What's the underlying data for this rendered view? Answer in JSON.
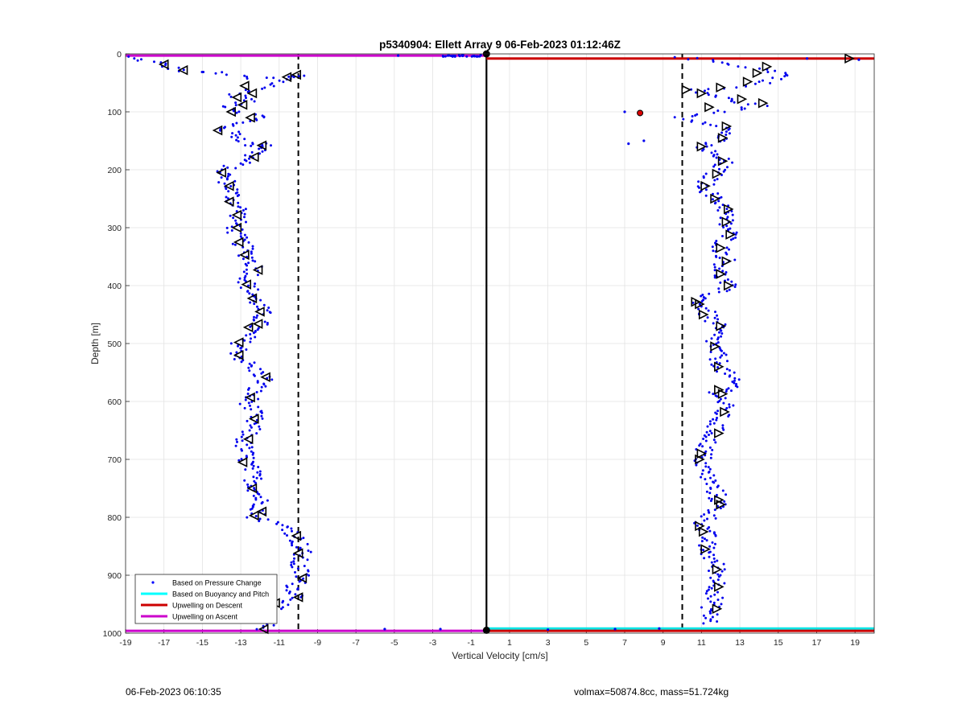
{
  "chart_data": {
    "type": "scatter",
    "title": "p5340904: Ellett Array 9 06-Feb-2023 01:12:46Z",
    "xlabel": "Vertical Velocity [cm/s]",
    "ylabel": "Depth [m]",
    "xlim": [
      -19,
      20
    ],
    "ylim": [
      0,
      1000
    ],
    "y_reversed": true,
    "grid": true,
    "xticks": [
      -19,
      -17,
      -15,
      -13,
      -11,
      -9,
      -7,
      -5,
      -3,
      -1,
      1,
      3,
      5,
      7,
      9,
      11,
      13,
      15,
      17,
      19
    ],
    "yticks": [
      0,
      100,
      200,
      300,
      400,
      500,
      600,
      700,
      800,
      900,
      1000
    ],
    "legend_position": "bottom-left",
    "legend": [
      {
        "label": "Based on Pressure Change",
        "color": "#0000ff",
        "style": "point"
      },
      {
        "label": "Based on Buoyancy and Pitch",
        "color": "#00ffff",
        "style": "line"
      },
      {
        "label": "Upwelling on Descent",
        "color": "#cc0000",
        "style": "line"
      },
      {
        "label": "Upwelling on Ascent",
        "color": "#cc00cc",
        "style": "line"
      }
    ],
    "reference_lines": {
      "dashed_x": [
        -10,
        10
      ],
      "solid_x": [
        -0.2
      ],
      "upwelling_ascent_depth": 3,
      "upwelling_descent_depth": 8,
      "bottom_lines_depth": [
        992,
        996
      ]
    },
    "ascent_profile": [
      [
        -19,
        5
      ],
      [
        -17.4,
        15
      ],
      [
        -16,
        30
      ],
      [
        -14.3,
        32
      ],
      [
        -12.6,
        42
      ],
      [
        -10.7,
        40
      ],
      [
        -9.9,
        38
      ],
      [
        -12,
        60
      ],
      [
        -13.3,
        70
      ],
      [
        -12.6,
        80
      ],
      [
        -13.5,
        90
      ],
      [
        -13.0,
        100
      ],
      [
        -11.6,
        110
      ],
      [
        -13.4,
        120
      ],
      [
        -13.8,
        130
      ],
      [
        -13.0,
        145
      ],
      [
        -12.4,
        160
      ],
      [
        -11.4,
        155
      ],
      [
        -12.4,
        175
      ],
      [
        -12.8,
        185
      ],
      [
        -13.9,
        200
      ],
      [
        -13.8,
        215
      ],
      [
        -13.5,
        230
      ],
      [
        -13.4,
        250
      ],
      [
        -13.0,
        270
      ],
      [
        -13.2,
        290
      ],
      [
        -13.3,
        310
      ],
      [
        -12.9,
        330
      ],
      [
        -12.6,
        350
      ],
      [
        -12.2,
        370
      ],
      [
        -12.7,
        395
      ],
      [
        -12.3,
        420
      ],
      [
        -11.9,
        445
      ],
      [
        -12.0,
        465
      ],
      [
        -12.5,
        480
      ],
      [
        -13.0,
        500
      ],
      [
        -13.1,
        520
      ],
      [
        -12.5,
        540
      ],
      [
        -11.7,
        560
      ],
      [
        -12.3,
        580
      ],
      [
        -12.6,
        600
      ],
      [
        -12.3,
        625
      ],
      [
        -12.5,
        650
      ],
      [
        -12.9,
        670
      ],
      [
        -12.7,
        700
      ],
      [
        -12.4,
        725
      ],
      [
        -12.2,
        750
      ],
      [
        -11.9,
        780
      ],
      [
        -12.2,
        800
      ],
      [
        -10.4,
        820
      ],
      [
        -10.0,
        840
      ],
      [
        -9.8,
        860
      ],
      [
        -10.1,
        880
      ],
      [
        -9.8,
        900
      ],
      [
        -10.2,
        920
      ],
      [
        -10.0,
        940
      ],
      [
        -11.3,
        955
      ],
      [
        -11.8,
        975
      ],
      [
        -11.7,
        995
      ]
    ],
    "descent_profile": [
      [
        9.9,
        5
      ],
      [
        12,
        15
      ],
      [
        14,
        25
      ],
      [
        15.5,
        35
      ],
      [
        14.5,
        48
      ],
      [
        12.8,
        58
      ],
      [
        10.5,
        62
      ],
      [
        11.5,
        70
      ],
      [
        12.5,
        80
      ],
      [
        14.0,
        90
      ],
      [
        11.8,
        100
      ],
      [
        10.0,
        110
      ],
      [
        12.2,
        125
      ],
      [
        12.3,
        140
      ],
      [
        11.0,
        160
      ],
      [
        11.6,
        175
      ],
      [
        12.2,
        185
      ],
      [
        11.7,
        205
      ],
      [
        11.2,
        225
      ],
      [
        11.5,
        245
      ],
      [
        12.3,
        265
      ],
      [
        12.2,
        290
      ],
      [
        12.5,
        310
      ],
      [
        12.0,
        335
      ],
      [
        12.3,
        355
      ],
      [
        11.9,
        380
      ],
      [
        12.4,
        400
      ],
      [
        10.9,
        425
      ],
      [
        11.3,
        450
      ],
      [
        11.8,
        470
      ],
      [
        11.6,
        500
      ],
      [
        11.9,
        530
      ],
      [
        12.3,
        555
      ],
      [
        12.8,
        575
      ],
      [
        11.9,
        585
      ],
      [
        12.2,
        610
      ],
      [
        11.8,
        635
      ],
      [
        11.6,
        655
      ],
      [
        11.2,
        680
      ],
      [
        11.0,
        705
      ],
      [
        11.3,
        730
      ],
      [
        11.8,
        760
      ],
      [
        11.9,
        780
      ],
      [
        11.1,
        810
      ],
      [
        11.3,
        835
      ],
      [
        11.2,
        855
      ],
      [
        11.8,
        885
      ],
      [
        11.9,
        905
      ],
      [
        11.8,
        925
      ],
      [
        11.6,
        945
      ],
      [
        11.4,
        965
      ],
      [
        11.5,
        985
      ]
    ],
    "scatter_outliers": [
      [
        -4.8,
        3
      ],
      [
        -0.5,
        2
      ],
      [
        7.2,
        155
      ],
      [
        8.0,
        150
      ],
      [
        7.0,
        100
      ],
      [
        7.8,
        102
      ],
      [
        16.5,
        8
      ],
      [
        19.2,
        10
      ],
      [
        -5.5,
        993
      ],
      [
        -2.6,
        993
      ],
      [
        3.0,
        994
      ],
      [
        6.5,
        993
      ],
      [
        8.8,
        992
      ]
    ],
    "ascent_markers": [
      [
        -17.0,
        18
      ],
      [
        -16.0,
        28
      ],
      [
        -10.6,
        40
      ],
      [
        -10.1,
        36
      ],
      [
        -12.8,
        55
      ],
      [
        -12.4,
        68
      ],
      [
        -13.2,
        75
      ],
      [
        -12.9,
        88
      ],
      [
        -13.5,
        100
      ],
      [
        -12.5,
        110
      ],
      [
        -14.2,
        132
      ],
      [
        -11.9,
        158
      ],
      [
        -12.3,
        178
      ],
      [
        -14.0,
        205
      ],
      [
        -13.6,
        228
      ],
      [
        -13.6,
        255
      ],
      [
        -13.2,
        278
      ],
      [
        -13.2,
        300
      ],
      [
        -13.1,
        325
      ],
      [
        -12.8,
        347
      ],
      [
        -12.1,
        373
      ],
      [
        -12.7,
        398
      ],
      [
        -12.4,
        422
      ],
      [
        -12.0,
        445
      ],
      [
        -12.1,
        466
      ],
      [
        -12.6,
        472
      ],
      [
        -13.1,
        498
      ],
      [
        -13.1,
        520
      ],
      [
        -11.7,
        558
      ],
      [
        -12.5,
        593
      ],
      [
        -12.3,
        630
      ],
      [
        -12.6,
        665
      ],
      [
        -12.9,
        705
      ],
      [
        -12.4,
        750
      ],
      [
        -11.9,
        790
      ],
      [
        -12.3,
        797
      ],
      [
        -10.1,
        832
      ],
      [
        -10.0,
        862
      ],
      [
        -9.8,
        905
      ],
      [
        -10.0,
        938
      ],
      [
        -11.2,
        948
      ],
      [
        -11.8,
        993
      ]
    ],
    "descent_markers": [
      [
        18.7,
        8
      ],
      [
        14.4,
        22
      ],
      [
        13.9,
        33
      ],
      [
        13.4,
        48
      ],
      [
        10.2,
        62
      ],
      [
        11.0,
        68
      ],
      [
        12.0,
        58
      ],
      [
        13.1,
        78
      ],
      [
        14.2,
        85
      ],
      [
        11.4,
        92
      ],
      [
        12.3,
        125
      ],
      [
        12.1,
        145
      ],
      [
        11.0,
        160
      ],
      [
        12.1,
        185
      ],
      [
        11.8,
        207
      ],
      [
        11.2,
        228
      ],
      [
        11.7,
        250
      ],
      [
        12.4,
        268
      ],
      [
        12.3,
        290
      ],
      [
        12.5,
        312
      ],
      [
        12.0,
        335
      ],
      [
        12.3,
        358
      ],
      [
        12.0,
        380
      ],
      [
        12.4,
        400
      ],
      [
        10.7,
        428
      ],
      [
        10.9,
        432
      ],
      [
        11.1,
        450
      ],
      [
        12.0,
        470
      ],
      [
        11.7,
        505
      ],
      [
        11.9,
        540
      ],
      [
        11.9,
        580
      ],
      [
        12.1,
        587
      ],
      [
        12.2,
        618
      ],
      [
        11.9,
        655
      ],
      [
        11.0,
        690
      ],
      [
        10.9,
        700
      ],
      [
        11.9,
        770
      ],
      [
        12.0,
        778
      ],
      [
        10.9,
        815
      ],
      [
        11.1,
        825
      ],
      [
        11.2,
        855
      ],
      [
        11.8,
        890
      ],
      [
        11.9,
        920
      ],
      [
        11.8,
        958
      ]
    ],
    "big_markers": [
      [
        -0.2,
        0
      ],
      [
        -0.2,
        995
      ]
    ],
    "red_marker": [
      7.8,
      102
    ]
  },
  "footer": {
    "left": "06-Feb-2023 06:10:35",
    "right": "volmax=50874.8cc, mass=51.724kg"
  }
}
